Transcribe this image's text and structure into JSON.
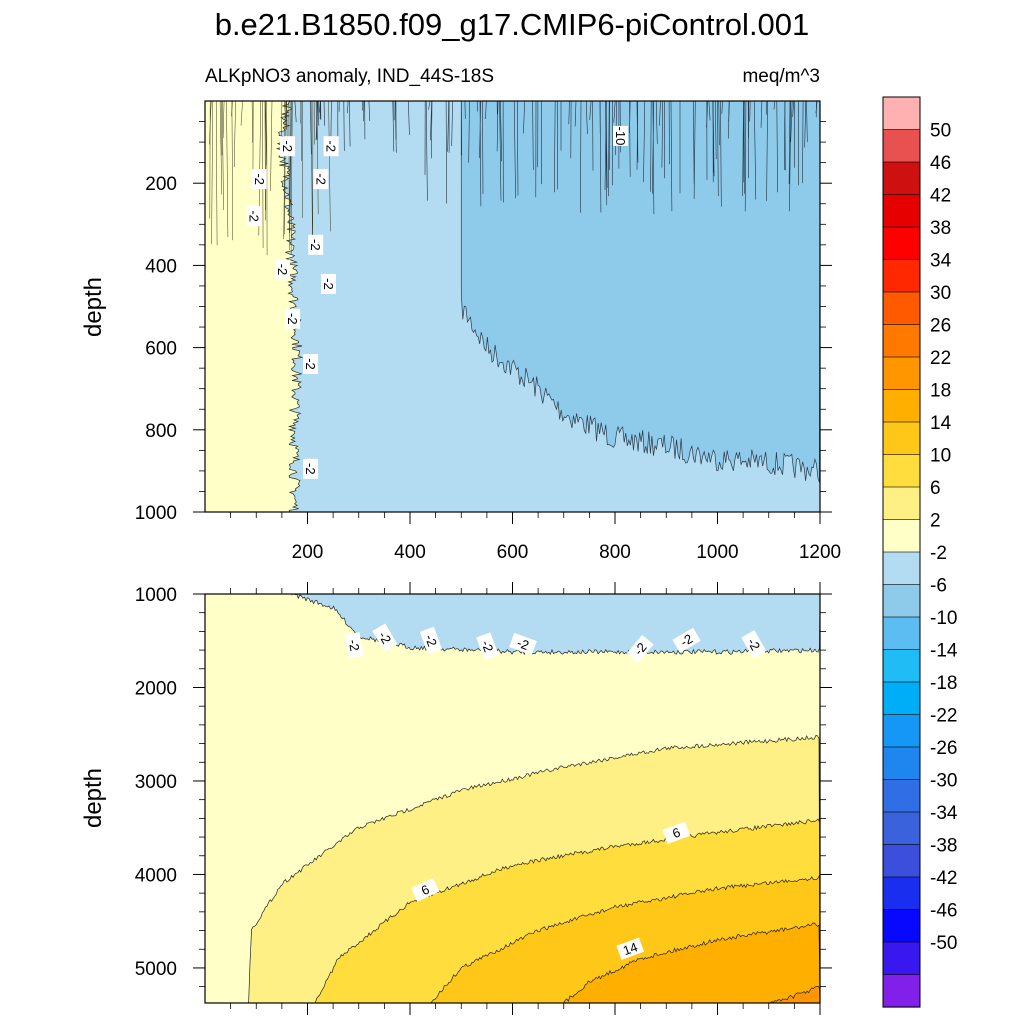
{
  "figure": {
    "title": "b.e21.B1850.f09_g17.CMIP6-piControl.001"
  },
  "chart_data": [
    {
      "type": "heatmap",
      "panel": "top",
      "subtitle_left": "ALKpNO3 anomaly, IND_44S-18S",
      "subtitle_right": "meq/m^3",
      "ylabel": "depth",
      "xlabel": "",
      "xlim": [
        0,
        1200
      ],
      "ylim": [
        0,
        1000
      ],
      "y_reversed": true,
      "xticks": [
        "200",
        "400",
        "600",
        "800",
        "1000",
        "1200"
      ],
      "yticks": [
        "200",
        "400",
        "600",
        "800",
        "1000"
      ],
      "contour_labels": [
        "-2",
        "-2",
        "-2",
        "-2",
        "-2",
        "-2",
        "-2",
        "-2",
        "-2",
        "-2",
        "-2",
        "-2",
        "-10"
      ],
      "regions": [
        {
          "level": "-2 to 2",
          "color": "#ffffc8",
          "boundary_x": [
            [
              0,
              160
            ],
            [
              100,
              150
            ],
            [
              200,
              160
            ],
            [
              400,
              170
            ],
            [
              600,
              180
            ],
            [
              800,
              175
            ],
            [
              1000,
              175
            ]
          ]
        },
        {
          "level": "-6 to -2",
          "color": "#b3dcf2"
        },
        {
          "level": "-10 to -6",
          "color": "#8ecbeb",
          "boundary_depth": [
            [
              500,
              500
            ],
            [
              550,
              600
            ],
            [
              650,
              700
            ],
            [
              700,
              760
            ],
            [
              800,
              820
            ],
            [
              900,
              840
            ],
            [
              1000,
              870
            ],
            [
              1100,
              880
            ],
            [
              1200,
              900
            ]
          ]
        }
      ]
    },
    {
      "type": "heatmap",
      "panel": "bottom",
      "ylabel": "depth",
      "xlabel": "",
      "xlim": [
        0,
        1200
      ],
      "ylim": [
        1000,
        5375
      ],
      "y_reversed": true,
      "yticks": [
        "1000",
        "2000",
        "3000",
        "4000",
        "5000"
      ],
      "contour_labels": [
        "-2",
        "-2",
        "-2",
        "-2",
        "-2",
        "-2",
        "-2",
        "-2",
        "6",
        "6",
        "14"
      ],
      "levels": [
        {
          "bound": "-2/2",
          "depths": [
            [
              170,
              1000
            ],
            [
              250,
              1150
            ],
            [
              300,
              1450
            ],
            [
              400,
              1570
            ],
            [
              600,
              1620
            ],
            [
              800,
              1620
            ],
            [
              1000,
              1620
            ],
            [
              1200,
              1600
            ]
          ]
        },
        {
          "bound": "2/6",
          "depths": [
            [
              85,
              5375
            ],
            [
              90,
              4600
            ],
            [
              150,
              4100
            ],
            [
              300,
              3500
            ],
            [
              500,
              3100
            ],
            [
              700,
              2850
            ],
            [
              900,
              2650
            ],
            [
              1200,
              2530
            ]
          ]
        },
        {
          "bound": "6/10",
          "depths": [
            [
              215,
              5375
            ],
            [
              260,
              4900
            ],
            [
              400,
              4300
            ],
            [
              600,
              3900
            ],
            [
              800,
              3700
            ],
            [
              1000,
              3550
            ],
            [
              1200,
              3420
            ]
          ]
        },
        {
          "bound": "10/14",
          "depths": [
            [
              440,
              5375
            ],
            [
              500,
              5000
            ],
            [
              650,
              4600
            ],
            [
              800,
              4350
            ],
            [
              1000,
              4150
            ],
            [
              1200,
              4030
            ]
          ]
        },
        {
          "bound": "14/18",
          "depths": [
            [
              700,
              5375
            ],
            [
              750,
              5150
            ],
            [
              850,
              4900
            ],
            [
              1000,
              4700
            ],
            [
              1200,
              4530
            ]
          ]
        },
        {
          "bound": "18/22",
          "depths": [
            [
              1100,
              5375
            ],
            [
              1150,
              5300
            ],
            [
              1200,
              5200
            ]
          ]
        }
      ]
    },
    {
      "type": "colorbar",
      "labels": [
        "50",
        "46",
        "42",
        "38",
        "34",
        "30",
        "26",
        "22",
        "18",
        "14",
        "10",
        "6",
        "2",
        "-2",
        "-6",
        "-10",
        "-14",
        "-18",
        "-22",
        "-26",
        "-30",
        "-34",
        "-38",
        "-42",
        "-46",
        "-50"
      ],
      "colors": [
        "#ffb0b0",
        "#e95050",
        "#cf1010",
        "#e60000",
        "#ff0000",
        "#ff2800",
        "#ff5a00",
        "#ff7800",
        "#ff9600",
        "#ffaf00",
        "#ffc818",
        "#ffdd3c",
        "#fff085",
        "#ffffc8",
        "#b3dcf2",
        "#8ecbeb",
        "#5bbdf1",
        "#1fbcf6",
        "#00aef7",
        "#1598f5",
        "#1f86f0",
        "#306ee6",
        "#3a62dc",
        "#3b4edc",
        "#1a2ef0",
        "#0808ff",
        "#3818ef",
        "#8020e8"
      ]
    }
  ]
}
